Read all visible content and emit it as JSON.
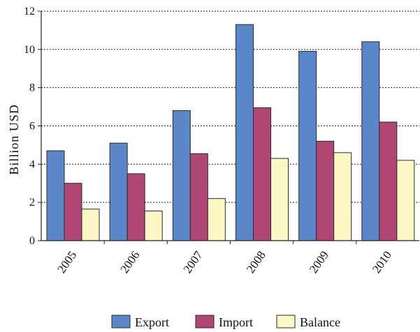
{
  "chart_data": {
    "type": "bar",
    "title": "",
    "xlabel": "",
    "ylabel": "Billion USD",
    "ylim": [
      0,
      12
    ],
    "yticks": [
      0,
      2,
      4,
      6,
      8,
      10,
      12
    ],
    "grid": true,
    "legend": "bottom",
    "categories": [
      "2005",
      "2006",
      "2007",
      "2008",
      "2009",
      "2010"
    ],
    "series": [
      {
        "name": "Export",
        "color": "#5b86c8",
        "values": [
          4.7,
          5.1,
          6.8,
          11.3,
          9.9,
          10.4
        ]
      },
      {
        "name": "Import",
        "color": "#b04673",
        "values": [
          3.0,
          3.5,
          4.55,
          6.95,
          5.2,
          6.2
        ]
      },
      {
        "name": "Balance",
        "color": "#fdf7c6",
        "values": [
          1.65,
          1.55,
          2.2,
          4.3,
          4.6,
          4.2
        ]
      }
    ]
  }
}
